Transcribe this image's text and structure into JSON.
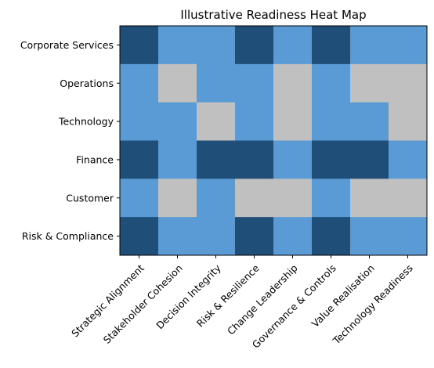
{
  "chart_data": {
    "type": "heatmap",
    "title": "Illustrative Readiness Heat Map",
    "xlabel": "",
    "ylabel": "",
    "columns": [
      "Strategic Alignment",
      "Stakeholder Cohesion",
      "Decision Integrity",
      "Risk & Resilience",
      "Change Leadership",
      "Governance & Controls",
      "Value Realisation",
      "Technology Readiness"
    ],
    "rows": [
      "Corporate Services",
      "Operations",
      "Technology",
      "Finance",
      "Customer",
      "Risk & Compliance"
    ],
    "values": [
      [
        2,
        1,
        1,
        2,
        1,
        2,
        1,
        1
      ],
      [
        1,
        0,
        1,
        1,
        0,
        1,
        0,
        0
      ],
      [
        1,
        1,
        0,
        1,
        0,
        1,
        1,
        0
      ],
      [
        2,
        1,
        2,
        2,
        1,
        2,
        2,
        1
      ],
      [
        1,
        0,
        1,
        0,
        0,
        1,
        0,
        0
      ],
      [
        2,
        1,
        1,
        2,
        1,
        2,
        1,
        1
      ]
    ],
    "level_colors": [
      "#c0c0c0",
      "#5b9bd5",
      "#1f4e79"
    ],
    "grid": false,
    "legend": "none"
  }
}
